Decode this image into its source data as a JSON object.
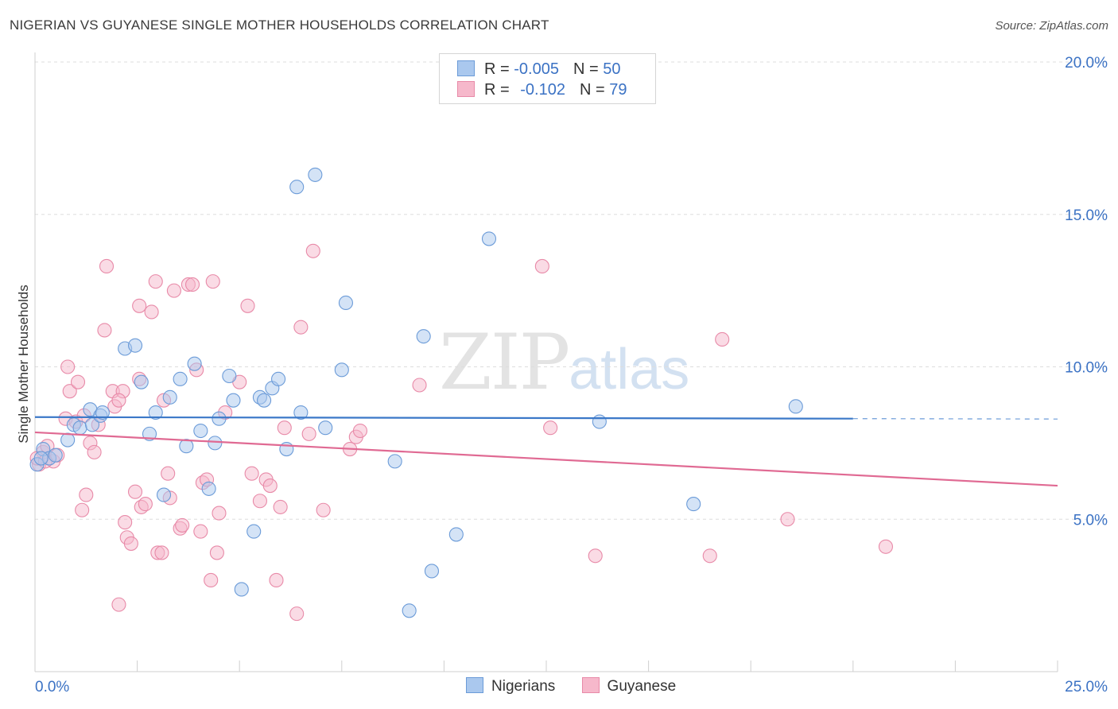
{
  "title": "NIGERIAN VS GUYANESE SINGLE MOTHER HOUSEHOLDS CORRELATION CHART",
  "source": "Source: ZipAtlas.com",
  "watermark": {
    "zip": "ZIP",
    "atlas": "atlas"
  },
  "legend": {
    "rows": [
      {
        "r_label": "R = ",
        "r_value": "-0.005",
        "n_label": "N = ",
        "n_value": "50"
      },
      {
        "r_label": "R = ",
        "r_value": "-0.102",
        "n_label": "N = ",
        "n_value": "79"
      }
    ]
  },
  "colors": {
    "nigerians_fill": "#aac8ee",
    "nigerians_stroke": "#6b9bd8",
    "nigerians_line": "#3b78c8",
    "guyanese_fill": "#f6b8cb",
    "guyanese_stroke": "#e88aa8",
    "guyanese_line": "#e06a93",
    "tick_label": "#3b72c4",
    "grid": "#dddddd"
  },
  "chart_data": {
    "type": "scatter",
    "title": "NIGERIAN VS GUYANESE SINGLE MOTHER HOUSEHOLDS CORRELATION CHART",
    "xlabel": "",
    "ylabel": "Single Mother Households",
    "xlim": [
      0,
      25
    ],
    "ylim": [
      0,
      20
    ],
    "x_tick_labels": [
      "0.0%",
      "25.0%"
    ],
    "y_ticks": [
      5,
      10,
      15,
      20
    ],
    "y_tick_labels": [
      "5.0%",
      "10.0%",
      "15.0%",
      "20.0%"
    ],
    "grid": true,
    "series": [
      {
        "name": "Nigerians",
        "points": [
          [
            0.05,
            6.8
          ],
          [
            0.2,
            7.3
          ],
          [
            0.35,
            7.0
          ],
          [
            0.5,
            7.1
          ],
          [
            0.8,
            7.6
          ],
          [
            0.95,
            8.1
          ],
          [
            1.1,
            8.0
          ],
          [
            1.35,
            8.6
          ],
          [
            1.4,
            8.1
          ],
          [
            1.6,
            8.4
          ],
          [
            1.65,
            8.5
          ],
          [
            2.2,
            10.6
          ],
          [
            2.45,
            10.7
          ],
          [
            2.6,
            9.5
          ],
          [
            2.8,
            7.8
          ],
          [
            2.95,
            8.5
          ],
          [
            3.15,
            5.8
          ],
          [
            3.3,
            9.0
          ],
          [
            3.55,
            9.6
          ],
          [
            3.7,
            7.4
          ],
          [
            3.9,
            10.1
          ],
          [
            4.05,
            7.9
          ],
          [
            4.25,
            6.0
          ],
          [
            4.4,
            7.5
          ],
          [
            4.5,
            8.3
          ],
          [
            4.75,
            9.7
          ],
          [
            4.85,
            8.9
          ],
          [
            5.05,
            2.7
          ],
          [
            5.35,
            4.6
          ],
          [
            5.5,
            9.0
          ],
          [
            5.6,
            8.9
          ],
          [
            5.8,
            9.3
          ],
          [
            5.95,
            9.6
          ],
          [
            6.15,
            7.3
          ],
          [
            6.4,
            15.9
          ],
          [
            6.5,
            8.5
          ],
          [
            6.85,
            16.3
          ],
          [
            7.1,
            8.0
          ],
          [
            7.5,
            9.9
          ],
          [
            7.6,
            12.1
          ],
          [
            8.8,
            6.9
          ],
          [
            9.15,
            2.0
          ],
          [
            9.5,
            11.0
          ],
          [
            9.7,
            3.3
          ],
          [
            10.3,
            4.5
          ],
          [
            11.1,
            14.2
          ],
          [
            13.8,
            8.2
          ],
          [
            16.1,
            5.5
          ],
          [
            18.6,
            8.7
          ],
          [
            0.15,
            7.0
          ]
        ]
      },
      {
        "name": "Guyanese",
        "points": [
          [
            0.1,
            6.8
          ],
          [
            0.2,
            7.2
          ],
          [
            0.3,
            7.4
          ],
          [
            0.45,
            6.9
          ],
          [
            0.55,
            7.1
          ],
          [
            0.75,
            8.3
          ],
          [
            0.8,
            10.0
          ],
          [
            0.85,
            9.2
          ],
          [
            1.0,
            8.2
          ],
          [
            1.05,
            9.5
          ],
          [
            1.15,
            5.3
          ],
          [
            1.2,
            8.4
          ],
          [
            1.25,
            5.8
          ],
          [
            1.35,
            7.5
          ],
          [
            1.45,
            7.2
          ],
          [
            1.7,
            11.2
          ],
          [
            1.75,
            13.3
          ],
          [
            1.95,
            8.7
          ],
          [
            1.9,
            9.2
          ],
          [
            2.05,
            2.2
          ],
          [
            2.15,
            9.2
          ],
          [
            2.2,
            4.9
          ],
          [
            2.25,
            4.4
          ],
          [
            2.35,
            4.2
          ],
          [
            2.45,
            5.9
          ],
          [
            2.55,
            9.6
          ],
          [
            2.55,
            12.0
          ],
          [
            2.6,
            5.4
          ],
          [
            2.7,
            5.5
          ],
          [
            2.85,
            11.8
          ],
          [
            2.95,
            12.8
          ],
          [
            3.0,
            3.9
          ],
          [
            3.1,
            3.9
          ],
          [
            3.15,
            8.9
          ],
          [
            3.25,
            6.5
          ],
          [
            3.3,
            5.7
          ],
          [
            3.4,
            12.5
          ],
          [
            3.55,
            4.7
          ],
          [
            3.6,
            4.8
          ],
          [
            3.75,
            12.7
          ],
          [
            3.85,
            12.7
          ],
          [
            3.95,
            9.9
          ],
          [
            4.05,
            4.6
          ],
          [
            4.1,
            6.2
          ],
          [
            4.2,
            6.3
          ],
          [
            4.3,
            3.0
          ],
          [
            4.35,
            12.8
          ],
          [
            4.45,
            3.9
          ],
          [
            4.5,
            5.2
          ],
          [
            4.65,
            8.5
          ],
          [
            5.0,
            9.5
          ],
          [
            5.2,
            12.0
          ],
          [
            5.3,
            6.5
          ],
          [
            5.5,
            5.6
          ],
          [
            5.65,
            6.3
          ],
          [
            5.75,
            6.1
          ],
          [
            5.9,
            3.0
          ],
          [
            6.0,
            5.4
          ],
          [
            6.1,
            8.0
          ],
          [
            6.4,
            1.9
          ],
          [
            6.5,
            11.3
          ],
          [
            6.7,
            7.8
          ],
          [
            6.8,
            13.8
          ],
          [
            7.05,
            5.3
          ],
          [
            7.7,
            7.3
          ],
          [
            7.85,
            7.7
          ],
          [
            7.95,
            7.9
          ],
          [
            9.4,
            9.4
          ],
          [
            12.4,
            13.3
          ],
          [
            12.6,
            8.0
          ],
          [
            13.7,
            3.8
          ],
          [
            16.5,
            3.8
          ],
          [
            16.8,
            10.9
          ],
          [
            18.4,
            5.0
          ],
          [
            20.8,
            4.1
          ],
          [
            0.05,
            7.0
          ],
          [
            0.25,
            6.9
          ],
          [
            1.55,
            8.1
          ],
          [
            2.05,
            8.9
          ]
        ]
      }
    ],
    "trendlines": [
      {
        "series": "Nigerians",
        "x": [
          0,
          20
        ],
        "y": [
          8.35,
          8.3
        ],
        "dashed_to": 25
      },
      {
        "series": "Guyanese",
        "x": [
          0,
          25
        ],
        "y": [
          7.85,
          6.1
        ]
      }
    ]
  },
  "bottom_legend": [
    "Nigerians",
    "Guyanese"
  ]
}
